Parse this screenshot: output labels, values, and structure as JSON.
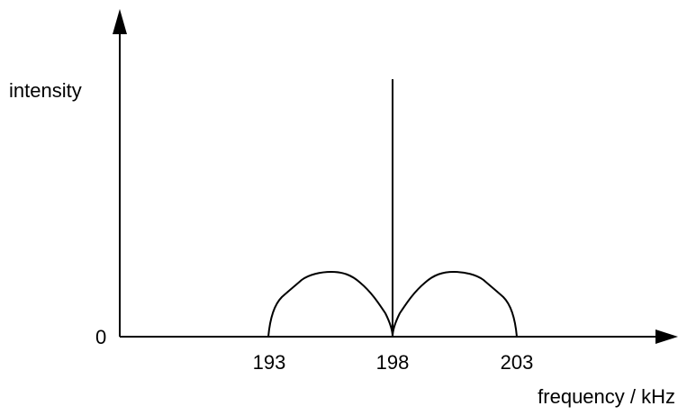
{
  "y_axis": {
    "label": "intensity",
    "zero_label": "0"
  },
  "x_axis": {
    "label": "frequency / kHz",
    "tick_labels": [
      "193",
      "198",
      "203"
    ]
  },
  "colors": {
    "ink": "#000000",
    "background": "#ffffff"
  }
}
